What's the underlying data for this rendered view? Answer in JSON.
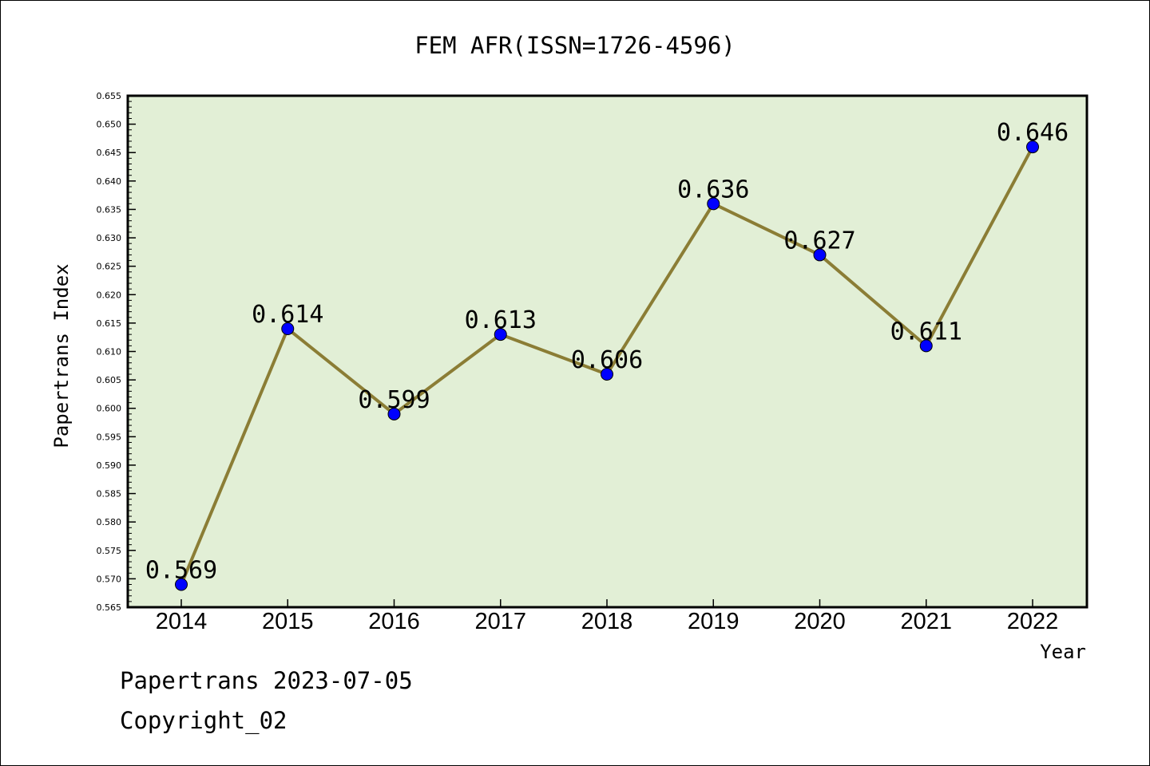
{
  "chart_data": {
    "type": "line",
    "title": "FEM AFR(ISSN=1726-4596)",
    "xlabel": "Year",
    "ylabel": "Papertrans Index",
    "categories": [
      "2014",
      "2015",
      "2016",
      "2017",
      "2018",
      "2019",
      "2020",
      "2021",
      "2022"
    ],
    "values": [
      0.569,
      0.614,
      0.599,
      0.613,
      0.606,
      0.636,
      0.627,
      0.611,
      0.646
    ],
    "data_labels": [
      "0.569",
      "0.614",
      "0.599",
      "0.613",
      "0.606",
      "0.636",
      "0.627",
      "0.611",
      "0.646"
    ],
    "ylim": [
      0.565,
      0.655
    ],
    "y_ticks": [
      "0.565",
      "0.570",
      "0.575",
      "0.580",
      "0.585",
      "0.590",
      "0.595",
      "0.600",
      "0.605",
      "0.610",
      "0.615",
      "0.620",
      "0.625",
      "0.630",
      "0.635",
      "0.640",
      "0.645",
      "0.650",
      "0.655"
    ],
    "grid": false,
    "legend": "none",
    "colors": {
      "plot_background": "#e2efd6",
      "line": "#8b7d35",
      "marker": "#0000ff"
    }
  },
  "footer": {
    "source": "Papertrans 2023-07-05",
    "copyright": "Copyright_02"
  }
}
